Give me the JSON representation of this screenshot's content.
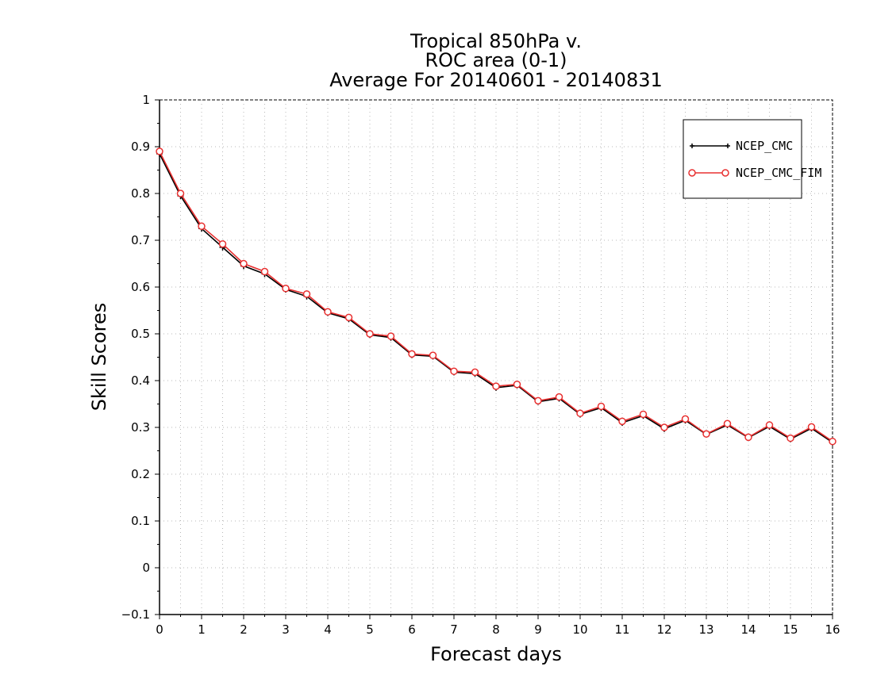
{
  "chart_data": {
    "type": "line",
    "title": [
      "Tropical 850hPa v.",
      "ROC area (0-1)",
      "Average For 20140601 - 20140831"
    ],
    "xlabel": "Forecast days",
    "ylabel": "Skill Scores",
    "xlim": [
      0,
      16
    ],
    "ylim": [
      -0.1,
      1
    ],
    "xticks": [
      "0",
      "1",
      "2",
      "3",
      "4",
      "5",
      "6",
      "7",
      "8",
      "9",
      "10",
      "11",
      "12",
      "13",
      "14",
      "15",
      "16"
    ],
    "yticks": [
      "-0.1",
      "0",
      "0.1",
      "0.2",
      "0.3",
      "0.4",
      "0.5",
      "0.6",
      "0.7",
      "0.8",
      "0.9",
      "1"
    ],
    "grid": true,
    "legend_position": "top-right",
    "x": [
      0,
      0.5,
      1,
      1.5,
      2,
      2.5,
      3,
      3.5,
      4,
      4.5,
      5,
      5.5,
      6,
      6.5,
      7,
      7.5,
      8,
      8.5,
      9,
      9.5,
      10,
      10.5,
      11,
      11.5,
      12,
      12.5,
      13,
      13.5,
      14,
      14.5,
      15,
      15.5,
      16
    ],
    "series": [
      {
        "name": "NCEP_CMC",
        "color": "#000000",
        "marker": "plus",
        "values": [
          0.885,
          0.795,
          0.725,
          0.685,
          0.645,
          0.628,
          0.595,
          0.58,
          0.545,
          0.532,
          0.498,
          0.492,
          0.455,
          0.452,
          0.418,
          0.415,
          0.385,
          0.39,
          0.355,
          0.362,
          0.328,
          0.342,
          0.31,
          0.325,
          0.297,
          0.315,
          0.285,
          0.305,
          0.278,
          0.302,
          0.275,
          0.298,
          0.268
        ]
      },
      {
        "name": "NCEP_CMC_FIM",
        "color": "#e83030",
        "marker": "circle",
        "values": [
          0.89,
          0.8,
          0.73,
          0.692,
          0.65,
          0.633,
          0.597,
          0.585,
          0.547,
          0.535,
          0.5,
          0.495,
          0.457,
          0.454,
          0.42,
          0.418,
          0.388,
          0.392,
          0.357,
          0.365,
          0.33,
          0.345,
          0.313,
          0.328,
          0.3,
          0.318,
          0.286,
          0.308,
          0.279,
          0.305,
          0.277,
          0.301,
          0.27
        ]
      }
    ]
  }
}
